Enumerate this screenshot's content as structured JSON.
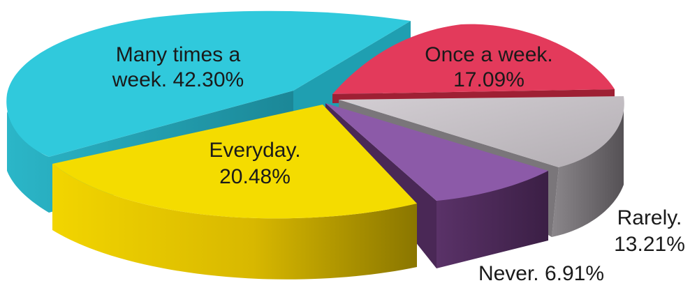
{
  "chart_data": {
    "type": "pie",
    "title": "",
    "slices": [
      {
        "label": "Many times a week.",
        "value": 42.3,
        "color": "#2ec7da",
        "label_lines": [
          "Many times a",
          "week. 42.30%"
        ]
      },
      {
        "label": "Once a week.",
        "value": 17.09,
        "color": "#e33a5b",
        "label_lines": [
          "Once a week.",
          "17.09%"
        ]
      },
      {
        "label": "Rarely.",
        "value": 13.21,
        "color": "#c4bfc4",
        "label_lines": [
          "Rarely.",
          "13.21%"
        ]
      },
      {
        "label": "Never.",
        "value": 6.91,
        "color": "#8c5aa8",
        "label_lines": [
          "Never. 6.91%"
        ]
      },
      {
        "label": "Everyday.",
        "value": 20.48,
        "color": "#f4dc00",
        "label_lines": [
          "Everyday.",
          "20.48%"
        ]
      }
    ],
    "style": "3d-exploded"
  }
}
